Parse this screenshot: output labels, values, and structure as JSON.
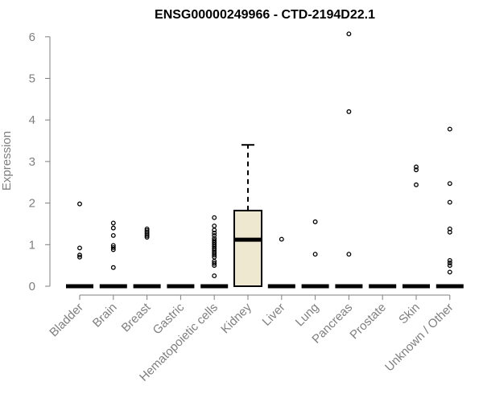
{
  "chart_data": {
    "type": "boxplot",
    "title": "ENSG00000249966 - CTD-2194D22.1",
    "ylabel": "Expression",
    "xlabel": "",
    "ylim": [
      0,
      6.2
    ],
    "yticks": [
      0,
      1,
      2,
      3,
      4,
      5,
      6
    ],
    "grid": false,
    "box_fill": "#efe8d0",
    "categories": [
      "Bladder",
      "Brain",
      "Breast",
      "Gastric",
      "Hematopoietic cells",
      "Kidney",
      "Liver",
      "Lung",
      "Pancreas",
      "Prostate",
      "Skin",
      "Unknown / Other"
    ],
    "boxes": [
      {
        "category": "Bladder",
        "min": 0,
        "q1": 0,
        "median": 0,
        "q3": 0,
        "max": 0,
        "outliers": [
          1.98,
          0.92,
          0.75,
          0.7
        ]
      },
      {
        "category": "Brain",
        "min": 0,
        "q1": 0,
        "median": 0,
        "q3": 0,
        "max": 0,
        "outliers": [
          1.52,
          1.4,
          1.22,
          0.98,
          0.93,
          0.88,
          0.45
        ]
      },
      {
        "category": "Breast",
        "min": 0,
        "q1": 0,
        "median": 0,
        "q3": 0,
        "max": 0,
        "outliers": [
          1.38,
          1.34,
          1.3,
          1.26,
          1.22,
          1.18
        ]
      },
      {
        "category": "Gastric",
        "min": 0,
        "q1": 0,
        "median": 0,
        "q3": 0,
        "max": 0,
        "outliers": []
      },
      {
        "category": "Hematopoietic cells",
        "min": 0,
        "q1": 0,
        "median": 0,
        "q3": 0,
        "max": 0,
        "outliers": [
          1.65,
          1.45,
          1.35,
          1.28,
          1.22,
          1.15,
          1.1,
          1.05,
          1.0,
          0.95,
          0.9,
          0.85,
          0.8,
          0.75,
          0.7,
          0.6,
          0.55,
          0.5,
          0.25
        ]
      },
      {
        "category": "Kidney",
        "min": 0,
        "q1": 0,
        "median": 1.12,
        "q3": 1.82,
        "max": 3.4,
        "outliers": []
      },
      {
        "category": "Liver",
        "min": 0,
        "q1": 0,
        "median": 0,
        "q3": 0,
        "max": 0,
        "outliers": [
          1.13
        ]
      },
      {
        "category": "Lung",
        "min": 0,
        "q1": 0,
        "median": 0,
        "q3": 0,
        "max": 0,
        "outliers": [
          1.55,
          0.77
        ]
      },
      {
        "category": "Pancreas",
        "min": 0,
        "q1": 0,
        "median": 0,
        "q3": 0,
        "max": 0,
        "outliers": [
          6.07,
          4.2,
          0.77
        ]
      },
      {
        "category": "Prostate",
        "min": 0,
        "q1": 0,
        "median": 0,
        "q3": 0,
        "max": 0,
        "outliers": []
      },
      {
        "category": "Skin",
        "min": 0,
        "q1": 0,
        "median": 0,
        "q3": 0,
        "max": 0,
        "outliers": [
          2.87,
          2.8,
          2.44
        ]
      },
      {
        "category": "Unknown / Other",
        "min": 0,
        "q1": 0,
        "median": 0,
        "q3": 0,
        "max": 0,
        "outliers": [
          3.78,
          2.47,
          2.02,
          1.38,
          1.3,
          0.62,
          0.56,
          0.5,
          0.34
        ]
      }
    ]
  }
}
